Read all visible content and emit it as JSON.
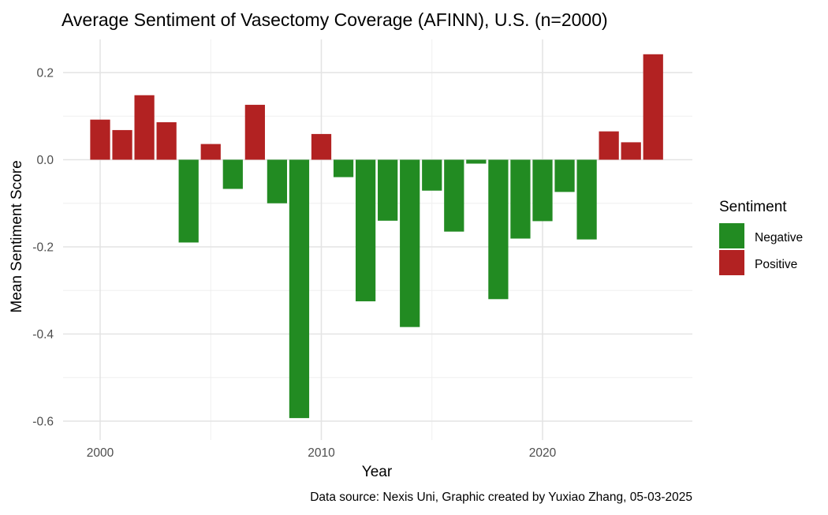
{
  "chart_data": {
    "type": "bar",
    "title": "Average Sentiment of Vasectomy Coverage (AFINN), U.S. (n=2000)",
    "xlabel": "Year",
    "ylabel": "Mean Sentiment Score",
    "caption": "Data source: Nexis Uni, Graphic created by Yuxiao Zhang, 05-03-2025",
    "x_ticks": [
      2000,
      2010,
      2020
    ],
    "y_ticks": [
      0.2,
      0.0,
      -0.2,
      -0.4,
      -0.6
    ],
    "y_tick_labels": [
      "0.2",
      "0.0",
      "-0.2",
      "-0.4",
      "-0.6"
    ],
    "x_tick_labels": [
      "2000",
      "2010",
      "2020"
    ],
    "xlim": [
      1998,
      2026.8
    ],
    "ylim": [
      -0.62,
      0.28
    ],
    "grid": true,
    "legend": {
      "title": "Sentiment",
      "position": "right",
      "entries": [
        {
          "name": "Negative",
          "color": "#228B22"
        },
        {
          "name": "Positive",
          "color": "#B22222"
        }
      ]
    },
    "categories": [
      2000,
      2001,
      2002,
      2003,
      2004,
      2005,
      2006,
      2007,
      2008,
      2009,
      2010,
      2011,
      2012,
      2013,
      2014,
      2015,
      2016,
      2017,
      2018,
      2019,
      2020,
      2021,
      2022,
      2023,
      2024,
      2025
    ],
    "values": [
      0.092,
      0.068,
      0.148,
      0.086,
      -0.19,
      0.036,
      -0.067,
      0.126,
      -0.1,
      -0.593,
      0.059,
      -0.04,
      -0.325,
      -0.14,
      -0.384,
      -0.071,
      -0.165,
      -0.009,
      -0.32,
      -0.181,
      -0.141,
      -0.074,
      -0.183,
      0.065,
      0.04,
      0.242
    ],
    "colors": {
      "Negative": "#228B22",
      "Positive": "#B22222"
    }
  }
}
